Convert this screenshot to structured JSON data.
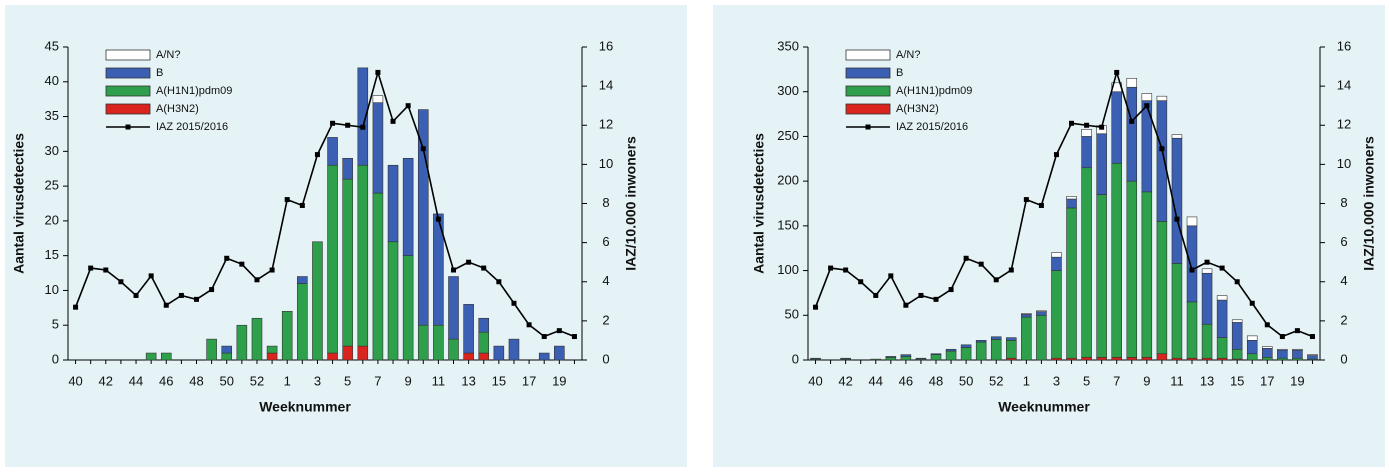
{
  "chart_data": [
    {
      "type": "bar",
      "stacked": true,
      "legend": "upper left",
      "xlabel": "Weeknummer",
      "ylabel": "Aantal virusdetecties",
      "y2label": "IAZ/10.000 inwoners",
      "categories": [
        "40",
        null,
        "42",
        null,
        "44",
        null,
        "46",
        null,
        "48",
        null,
        "50",
        null,
        "52",
        null,
        "1",
        null,
        "3",
        null,
        "5",
        null,
        "7",
        null,
        "9",
        null,
        "11",
        null,
        "13",
        null,
        "15",
        null,
        "17",
        null,
        "19",
        null
      ],
      "ylim": [
        0,
        45
      ],
      "yticks": [
        0,
        5,
        10,
        15,
        20,
        25,
        30,
        35,
        40,
        45
      ],
      "y2lim": [
        0,
        16
      ],
      "y2ticks": [
        0,
        2,
        4,
        6,
        8,
        10,
        12,
        14,
        16
      ],
      "series": [
        {
          "name": "A/N?",
          "color": "#ffffff",
          "values": [
            0,
            0,
            0,
            0,
            0,
            0,
            0,
            0,
            0,
            0,
            0,
            0,
            0,
            0,
            0,
            0,
            0,
            0,
            0,
            0,
            1,
            0,
            0,
            0,
            0,
            0,
            0,
            0,
            0,
            0,
            0,
            0,
            0,
            0
          ]
        },
        {
          "name": "B",
          "color": "#3b5fb3",
          "values": [
            0,
            0,
            0,
            0,
            0,
            0,
            0,
            0,
            0,
            0,
            1,
            0,
            0,
            0,
            0,
            1,
            0,
            4,
            3,
            14,
            13,
            11,
            14,
            31,
            16,
            9,
            7,
            2,
            2,
            3,
            0,
            1,
            2,
            0
          ]
        },
        {
          "name": "A(H1N1)pdm09",
          "color": "#2ea04b",
          "values": [
            0,
            0,
            0,
            0,
            0,
            1,
            1,
            0,
            0,
            3,
            1,
            5,
            6,
            1,
            7,
            11,
            17,
            27,
            24,
            26,
            24,
            17,
            15,
            5,
            5,
            3,
            0,
            3,
            0,
            0,
            0,
            0,
            0,
            0
          ]
        },
        {
          "name": "A(H3N2)",
          "color": "#d9251d",
          "values": [
            0,
            0,
            0,
            0,
            0,
            0,
            0,
            0,
            0,
            0,
            0,
            0,
            0,
            1,
            0,
            0,
            0,
            1,
            2,
            2,
            0,
            0,
            0,
            0,
            0,
            0,
            1,
            1,
            0,
            0,
            0,
            0,
            0,
            0
          ]
        },
        {
          "name": "IAZ 2015/2016",
          "type": "line",
          "axis": "y2",
          "color": "#000000",
          "values": [
            2.7,
            4.7,
            4.6,
            4.0,
            3.3,
            4.3,
            2.8,
            3.3,
            3.1,
            3.6,
            5.2,
            4.9,
            4.1,
            4.6,
            8.2,
            7.9,
            10.5,
            12.1,
            12.0,
            11.9,
            14.7,
            12.2,
            13.0,
            10.8,
            7.2,
            4.6,
            5.0,
            4.7,
            4.0,
            2.9,
            1.8,
            1.2,
            1.5,
            1.2
          ]
        }
      ]
    },
    {
      "type": "bar",
      "stacked": true,
      "legend": "upper left",
      "xlabel": "Weeknummer",
      "ylabel": "Aantal virusdetecties",
      "y2label": "IAZ/10.000 inwoners",
      "categories": [
        "40",
        null,
        "42",
        null,
        "44",
        null,
        "46",
        null,
        "48",
        null,
        "50",
        null,
        "52",
        null,
        "1",
        null,
        "3",
        null,
        "5",
        null,
        "7",
        null,
        "9",
        null,
        "11",
        null,
        "13",
        null,
        "15",
        null,
        "17",
        null,
        "19",
        null
      ],
      "ylim": [
        0,
        350
      ],
      "yticks": [
        0,
        50,
        100,
        150,
        200,
        250,
        300,
        350
      ],
      "y2lim": [
        0,
        16
      ],
      "y2ticks": [
        0,
        2,
        4,
        6,
        8,
        10,
        12,
        14,
        16
      ],
      "series": [
        {
          "name": "A/N?",
          "color": "#ffffff",
          "values": [
            0,
            0,
            0,
            0,
            0,
            0,
            0,
            0,
            0,
            0,
            0,
            0,
            0,
            0,
            1,
            1,
            5,
            3,
            8,
            9,
            10,
            10,
            8,
            5,
            4,
            10,
            5,
            5,
            3,
            5,
            2,
            1,
            1,
            1
          ]
        },
        {
          "name": "B",
          "color": "#3b5fb3",
          "values": [
            1,
            0,
            1,
            0,
            0,
            1,
            2,
            1,
            1,
            2,
            3,
            2,
            3,
            3,
            3,
            4,
            15,
            10,
            35,
            68,
            80,
            105,
            102,
            135,
            140,
            85,
            57,
            42,
            30,
            15,
            10,
            9,
            9,
            4
          ]
        },
        {
          "name": "A(H1N1)pdm09",
          "color": "#2ea04b",
          "values": [
            1,
            0,
            1,
            0,
            1,
            3,
            4,
            1,
            6,
            10,
            14,
            20,
            23,
            20,
            48,
            50,
            98,
            168,
            212,
            182,
            217,
            197,
            185,
            148,
            106,
            63,
            38,
            23,
            11,
            7,
            3,
            2,
            2,
            1
          ]
        },
        {
          "name": "A(H3N2)",
          "color": "#d9251d",
          "values": [
            0,
            0,
            0,
            0,
            0,
            0,
            0,
            0,
            0,
            0,
            0,
            0,
            0,
            2,
            0,
            0,
            2,
            2,
            3,
            3,
            3,
            3,
            3,
            7,
            2,
            2,
            2,
            2,
            1,
            0,
            0,
            0,
            0,
            0
          ]
        },
        {
          "name": "IAZ 2015/2016",
          "type": "line",
          "axis": "y2",
          "color": "#000000",
          "values": [
            2.7,
            4.7,
            4.6,
            4.0,
            3.3,
            4.3,
            2.8,
            3.3,
            3.1,
            3.6,
            5.2,
            4.9,
            4.1,
            4.6,
            8.2,
            7.9,
            10.5,
            12.1,
            12.0,
            11.9,
            14.7,
            12.2,
            13.0,
            10.8,
            7.2,
            4.6,
            5.0,
            4.7,
            4.0,
            2.9,
            1.8,
            1.2,
            1.5,
            1.2
          ]
        }
      ]
    }
  ]
}
